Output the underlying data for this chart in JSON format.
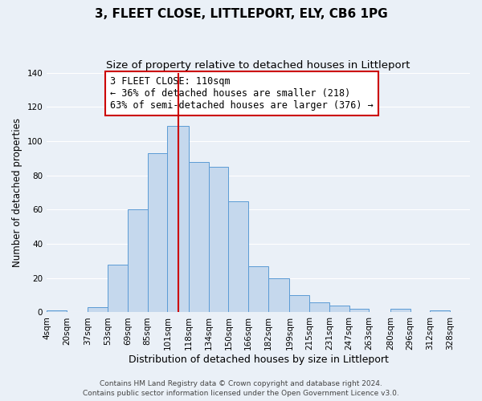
{
  "title": "3, FLEET CLOSE, LITTLEPORT, ELY, CB6 1PG",
  "subtitle": "Size of property relative to detached houses in Littleport",
  "xlabel": "Distribution of detached houses by size in Littleport",
  "ylabel": "Number of detached properties",
  "bin_labels": [
    "4sqm",
    "20sqm",
    "37sqm",
    "53sqm",
    "69sqm",
    "85sqm",
    "101sqm",
    "118sqm",
    "134sqm",
    "150sqm",
    "166sqm",
    "182sqm",
    "199sqm",
    "215sqm",
    "231sqm",
    "247sqm",
    "263sqm",
    "280sqm",
    "296sqm",
    "312sqm",
    "328sqm"
  ],
  "bar_heights": [
    1,
    0,
    3,
    28,
    60,
    93,
    109,
    88,
    85,
    65,
    27,
    20,
    10,
    6,
    4,
    2,
    0,
    2,
    0,
    1,
    0
  ],
  "bar_color": "#c5d8ed",
  "bar_edge_color": "#5b9bd5",
  "bin_edges": [
    4,
    20,
    37,
    53,
    69,
    85,
    101,
    118,
    134,
    150,
    166,
    182,
    199,
    215,
    231,
    247,
    263,
    280,
    296,
    312,
    328,
    344
  ],
  "ylim": [
    0,
    140
  ],
  "yticks": [
    0,
    20,
    40,
    60,
    80,
    100,
    120,
    140
  ],
  "ref_line_x": 110,
  "annotation_title": "3 FLEET CLOSE: 110sqm",
  "annotation_line1": "← 36% of detached houses are smaller (218)",
  "annotation_line2": "63% of semi-detached houses are larger (376) →",
  "footnote1": "Contains HM Land Registry data © Crown copyright and database right 2024.",
  "footnote2": "Contains public sector information licensed under the Open Government Licence v3.0.",
  "background_color": "#eaf0f7",
  "plot_bg_color": "#eaf0f7",
  "grid_color": "#ffffff",
  "ref_line_color": "#cc0000",
  "annotation_box_edge_color": "#cc0000",
  "title_fontsize": 11,
  "subtitle_fontsize": 9.5,
  "xlabel_fontsize": 9,
  "ylabel_fontsize": 8.5,
  "tick_fontsize": 7.5,
  "annotation_fontsize": 8.5,
  "footnote_fontsize": 6.5
}
